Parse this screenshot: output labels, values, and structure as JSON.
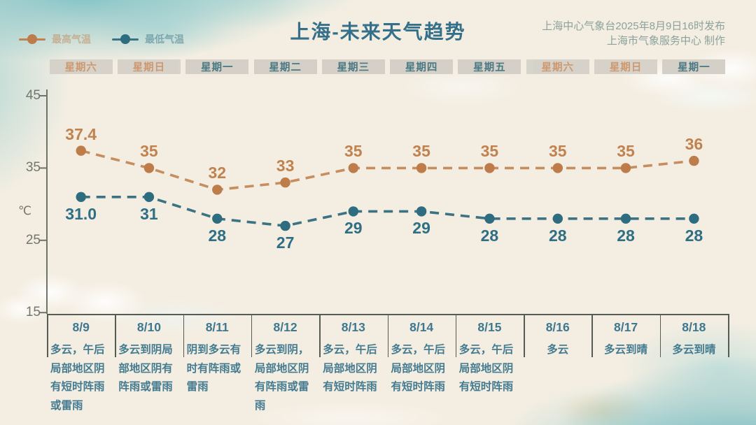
{
  "meta": {
    "bg_color": "#f4eee2",
    "accent_teal": "#35708a",
    "accent_orange": "#c1824f"
  },
  "header": {
    "title": "上海-未来天气趋势",
    "source_line1": "上海中心气象台2025年8月9日16时发布",
    "source_line2": "上海市气象服务中心 制作"
  },
  "legend": {
    "items": [
      {
        "label": "最高气温",
        "color": "#c1824f",
        "dot_color": "#bd7c49"
      },
      {
        "label": "最低气温",
        "color": "#3a7484",
        "dot_color": "#2e6c80"
      }
    ]
  },
  "weekday_row": [
    {
      "label": "星期六",
      "kind": "weekend"
    },
    {
      "label": "星期日",
      "kind": "weekend"
    },
    {
      "label": "星期一",
      "kind": "weekday"
    },
    {
      "label": "星期二",
      "kind": "weekday"
    },
    {
      "label": "星期三",
      "kind": "weekday"
    },
    {
      "label": "星期四",
      "kind": "weekday"
    },
    {
      "label": "星期五",
      "kind": "weekday"
    },
    {
      "label": "星期六",
      "kind": "weekend"
    },
    {
      "label": "星期日",
      "kind": "weekend"
    },
    {
      "label": "星期一",
      "kind": "weekday"
    }
  ],
  "chart_data": {
    "type": "line",
    "title": "上海-未来天气趋势",
    "x_dates": [
      "8/9",
      "8/10",
      "8/11",
      "8/12",
      "8/13",
      "8/14",
      "8/15",
      "8/16",
      "8/17",
      "8/18"
    ],
    "series": [
      {
        "name": "最高气温",
        "color": "#c68e5f",
        "dot_color": "#bd7c49",
        "label_color": "#c0824f",
        "values": [
          37.4,
          35,
          32,
          33,
          35,
          35,
          35,
          35,
          35,
          36
        ],
        "value_labels": [
          "37.4",
          "35",
          "32",
          "33",
          "35",
          "35",
          "35",
          "35",
          "35",
          "36"
        ]
      },
      {
        "name": "最低气温",
        "color": "#3b7383",
        "dot_color": "#2e6c80",
        "label_color": "#2f6f85",
        "values": [
          31.0,
          31,
          28,
          27,
          29,
          29,
          28,
          28,
          28,
          28
        ],
        "value_labels": [
          "31.0",
          "31",
          "28",
          "27",
          "29",
          "29",
          "28",
          "28",
          "28",
          "28"
        ]
      }
    ],
    "ylabel": "℃",
    "yticks": [
      "45",
      "35",
      "25",
      "15"
    ],
    "ylim": [
      15,
      45
    ],
    "grid": false,
    "line_style": "dashed",
    "legend_position": "top-left"
  },
  "forecast_table": {
    "columns": [
      {
        "date": "8/9",
        "weather": "多云，午后局部地区阴有短时阵雨或雷雨"
      },
      {
        "date": "8/10",
        "weather": "多云到阴局部地区阴有阵雨或雷雨"
      },
      {
        "date": "8/11",
        "weather": "阴到多云有时有阵雨或雷雨"
      },
      {
        "date": "8/12",
        "weather": "多云到阴，局部地区阴有阵雨或雷雨"
      },
      {
        "date": "8/13",
        "weather": "多云，午后局部地区阴有短时阵雨"
      },
      {
        "date": "8/14",
        "weather": "多云，午后局部地区阴有短时阵雨"
      },
      {
        "date": "8/15",
        "weather": "多云，午后局部地区阴有短时阵雨"
      },
      {
        "date": "8/16",
        "weather": "多云"
      },
      {
        "date": "8/17",
        "weather": "多云到晴"
      },
      {
        "date": "8/18",
        "weather": "多云到晴"
      }
    ]
  }
}
